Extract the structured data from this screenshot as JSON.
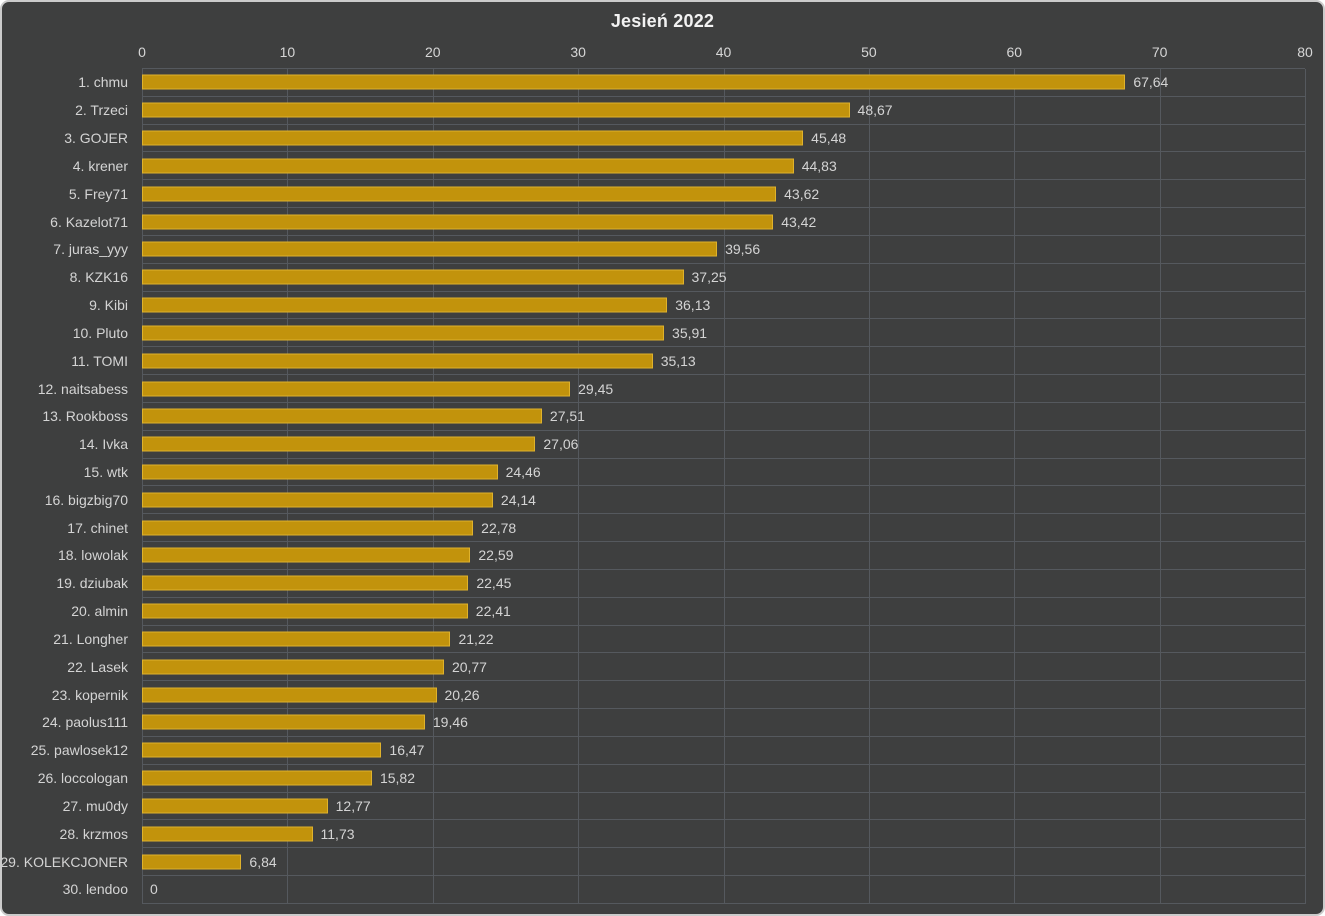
{
  "title": "Jesień 2022",
  "colors": {
    "background": "#3E3F3F",
    "canvas_border": "#CBCBCB",
    "gridline": "#55595E",
    "bar_fill": "#C2930C",
    "bar_border": "#DFB22C",
    "label_text": "#D4D4D4",
    "title_text": "#F2F2F2"
  },
  "chart_data": {
    "type": "bar",
    "orientation": "horizontal",
    "title": "Jesień 2022",
    "grid": true,
    "legend": false,
    "x_axis": {
      "position": "top",
      "min": 0,
      "max": 80,
      "ticks": [
        0,
        10,
        20,
        30,
        40,
        50,
        60,
        70,
        80
      ]
    },
    "categories": [
      "1. chmu",
      "2. Trzeci",
      "3. GOJER",
      "4. krener",
      "5. Frey71",
      "6. Kazelot71",
      "7. juras_yyy",
      "8. KZK16",
      "9. Kibi",
      "10. Pluto",
      "11. TOMI",
      "12. naitsabess",
      "13. Rookboss",
      "14. Ivka",
      "15. wtk",
      "16. bigzbig70",
      "17. chinet",
      "18. lowolak",
      "19. dziubak",
      "20. almin",
      "21. Longher",
      "22. Lasek",
      "23. kopernik",
      "24. paolus111",
      "25. pawlosek12",
      "26. loccologan",
      "27. mu0dy",
      "28. krzmos",
      "29. KOLEKCJONER",
      "30. lendoo"
    ],
    "values": [
      67.64,
      48.67,
      45.48,
      44.83,
      43.62,
      43.42,
      39.56,
      37.25,
      36.13,
      35.91,
      35.13,
      29.45,
      27.51,
      27.06,
      24.46,
      24.14,
      22.78,
      22.59,
      22.45,
      22.41,
      21.22,
      20.77,
      20.26,
      19.46,
      16.47,
      15.82,
      12.77,
      11.73,
      6.84,
      0
    ],
    "value_labels": [
      "67,64",
      "48,67",
      "45,48",
      "44,83",
      "43,62",
      "43,42",
      "39,56",
      "37,25",
      "36,13",
      "35,91",
      "35,13",
      "29,45",
      "27,51",
      "27,06",
      "24,46",
      "24,14",
      "22,78",
      "22,59",
      "22,45",
      "22,41",
      "21,22",
      "20,77",
      "20,26",
      "19,46",
      "16,47",
      "15,82",
      "12,77",
      "11,73",
      "6,84",
      "0"
    ]
  }
}
